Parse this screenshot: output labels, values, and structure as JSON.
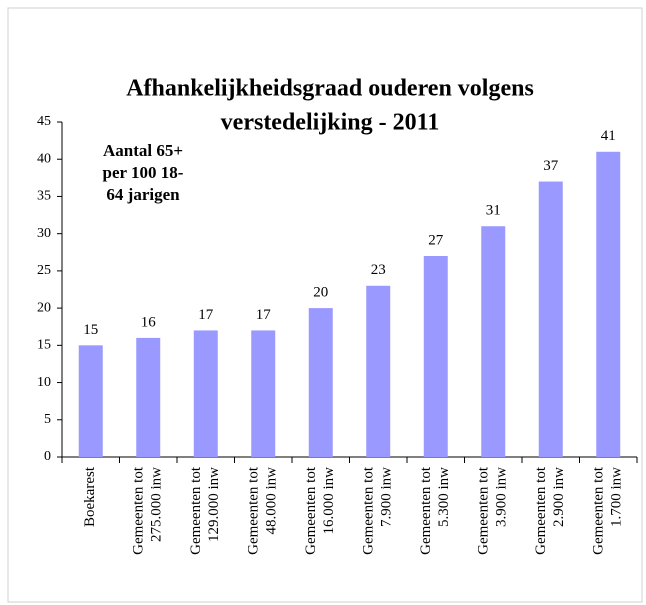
{
  "chart_data": {
    "type": "bar",
    "title": [
      "Afhankelijkheidsgraad ouderen volgens",
      "verstedelijking - 2011"
    ],
    "annotation": [
      "Aantal 65+",
      "per 100 18-",
      "64 jarigen"
    ],
    "categories": [
      [
        "Boekarest"
      ],
      [
        "Gemeenten tot",
        "275.000 inw"
      ],
      [
        "Gemeenten tot",
        "129.000 inw"
      ],
      [
        "Gemeenten tot",
        "48.000 inw"
      ],
      [
        "Gemeenten tot",
        "16.000 inw"
      ],
      [
        "Gemeenten tot",
        "7.900 inw"
      ],
      [
        "Gemeenten tot",
        "5.300 inw"
      ],
      [
        "Gemeenten tot",
        "3.900 inw"
      ],
      [
        "Gemeenten tot",
        "2.900 inw"
      ],
      [
        "Gemeenten tot",
        "1.700 inw"
      ]
    ],
    "values": [
      15,
      16,
      17,
      17,
      20,
      23,
      27,
      31,
      37,
      41
    ],
    "color": "#9999ff",
    "ylim": [
      0,
      45
    ],
    "yticks": [
      0,
      5,
      10,
      15,
      20,
      25,
      30,
      35,
      40,
      45
    ]
  }
}
